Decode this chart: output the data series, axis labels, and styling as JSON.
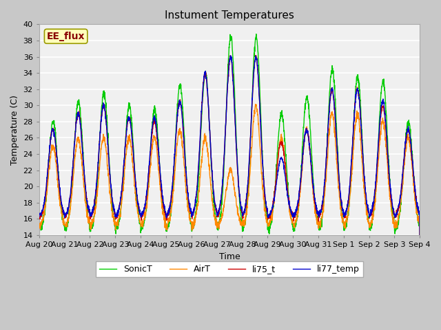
{
  "title": "Instument Temperatures",
  "xlabel": "Time",
  "ylabel": "Temperature (C)",
  "ylim": [
    14,
    40
  ],
  "yticks": [
    14,
    16,
    18,
    20,
    22,
    24,
    26,
    28,
    30,
    32,
    34,
    36,
    38,
    40
  ],
  "fig_bg": "#c8c8c8",
  "plot_bg": "#f0f0f0",
  "series": {
    "li75_t": {
      "color": "#cc0000",
      "lw": 1.0
    },
    "li77_temp": {
      "color": "#0000cc",
      "lw": 1.0
    },
    "SonicT": {
      "color": "#00cc00",
      "lw": 1.0
    },
    "AirT": {
      "color": "#ff8800",
      "lw": 1.0
    }
  },
  "ann_text": "EE_flux",
  "ann_color": "#880000",
  "ann_bg": "#ffffbb",
  "ann_border": "#999900",
  "x_labels": [
    "Aug 20",
    "Aug 21",
    "Aug 22",
    "Aug 23",
    "Aug 24",
    "Aug 25",
    "Aug 26",
    "Aug 27",
    "Aug 28",
    "Aug 29",
    "Aug 30",
    "Aug 31",
    "Sep 1",
    "Sep 2",
    "Sep 3",
    "Sep 4"
  ],
  "n_days": 15,
  "pts_per_day": 144,
  "day_peaks_sonic": [
    28,
    30.5,
    31.5,
    30,
    29.5,
    32.5,
    34,
    38.5,
    38.5,
    29,
    31,
    34.5,
    33.5,
    33,
    28
  ],
  "day_peaks_li75": [
    27,
    29,
    30,
    28.5,
    28,
    30.5,
    34,
    36,
    36,
    25.5,
    27,
    32,
    32,
    30,
    27
  ],
  "day_peaks_li77": [
    27,
    29,
    30,
    28.5,
    28.5,
    30.5,
    34,
    36,
    36,
    23.5,
    27,
    32,
    32,
    30.5,
    27
  ],
  "day_peaks_airt": [
    25,
    26,
    26,
    26,
    26,
    27,
    26,
    22,
    30,
    26,
    27,
    29,
    29,
    28,
    26
  ],
  "night_base": 15.5,
  "grid_color": "#e0e0e0",
  "tick_fs": 8,
  "label_fs": 9,
  "title_fs": 11,
  "legend_fs": 9
}
